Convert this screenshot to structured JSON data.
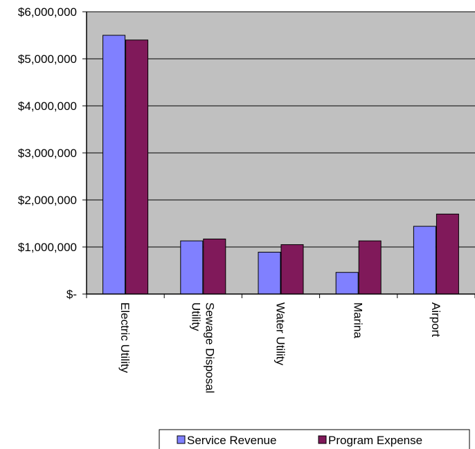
{
  "chart_data": {
    "type": "bar",
    "title": "",
    "xlabel": "",
    "ylabel": "",
    "categories": [
      [
        "Electric Utility"
      ],
      [
        "Sewage Disposal",
        "Utility"
      ],
      [
        "Water Utility"
      ],
      [
        "Marina"
      ],
      [
        "Airport"
      ]
    ],
    "series": [
      {
        "name": "Service Revenue",
        "color": "#8080ff",
        "values": [
          5500000,
          1130000,
          890000,
          460000,
          1440000
        ]
      },
      {
        "name": "Program Expense",
        "color": "#80195a",
        "values": [
          5400000,
          1170000,
          1050000,
          1130000,
          1700000
        ]
      }
    ],
    "ylim": [
      0,
      6000000
    ],
    "yticks": [
      {
        "value": 0,
        "label": "$-"
      },
      {
        "value": 1000000,
        "label": "$1,000,000"
      },
      {
        "value": 2000000,
        "label": "$2,000,000"
      },
      {
        "value": 3000000,
        "label": "$3,000,000"
      },
      {
        "value": 4000000,
        "label": "$4,000,000"
      },
      {
        "value": 5000000,
        "label": "$5,000,000"
      },
      {
        "value": 6000000,
        "label": "$6,000,000"
      }
    ],
    "grid": true,
    "plot_background": "#c0c0c0",
    "legend_position": "bottom"
  }
}
